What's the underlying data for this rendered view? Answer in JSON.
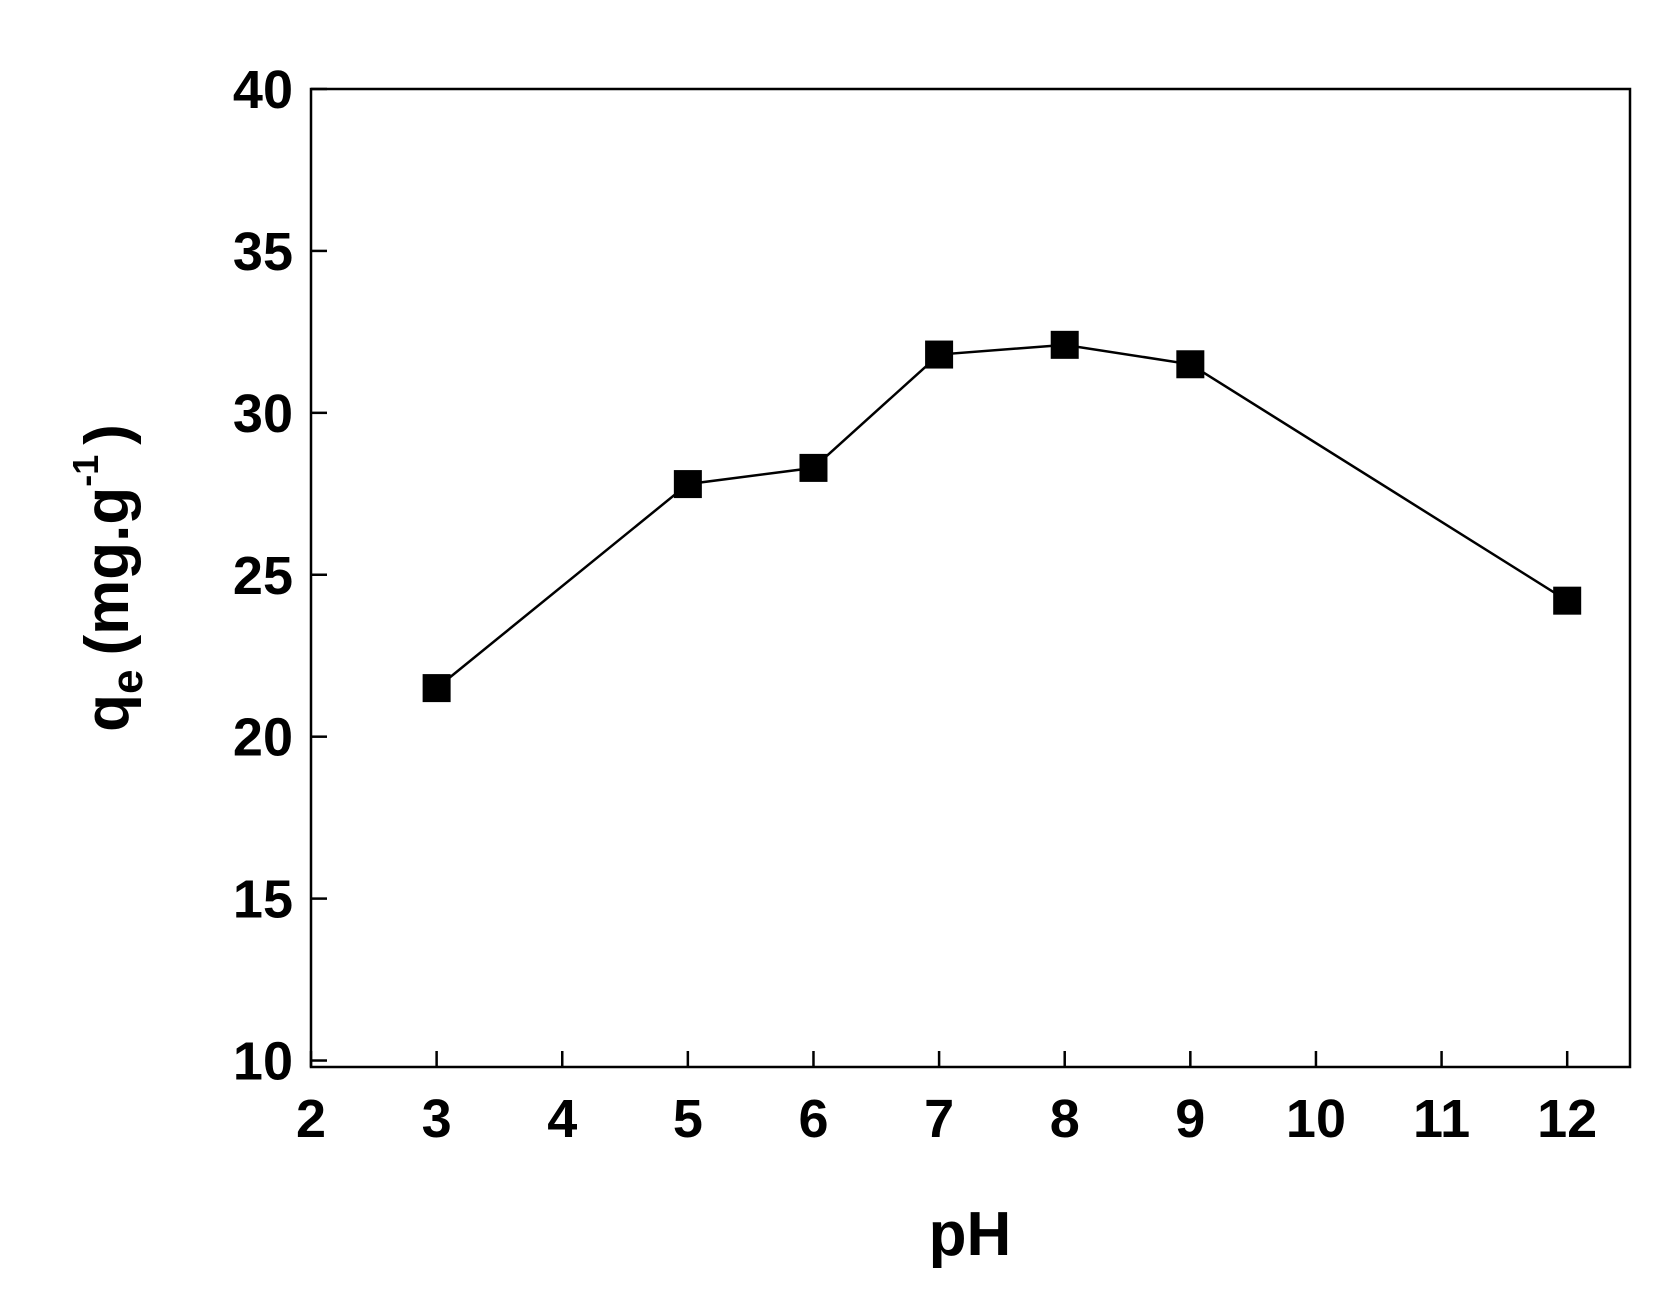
{
  "chart_data": {
    "type": "line",
    "x_label": "pH",
    "y_label": {
      "symbol": "q",
      "subscript": "e",
      "unit": "(mg.g",
      "superscript": "-1",
      "close": ")"
    },
    "x": [
      3,
      5,
      6,
      7,
      8,
      9,
      12
    ],
    "series": [
      {
        "name": "qe",
        "color": "#000000",
        "marker": "square",
        "values": [
          21.5,
          27.8,
          28.3,
          31.8,
          32.1,
          31.5,
          24.2
        ]
      }
    ],
    "xlim": [
      2,
      12.5
    ],
    "xticks": [
      2,
      3,
      4,
      5,
      6,
      7,
      8,
      9,
      10,
      11,
      12
    ],
    "ylim": [
      9.8,
      40
    ],
    "yticks": [
      10,
      15,
      20,
      25,
      30,
      35,
      40
    ],
    "grid": false
  }
}
